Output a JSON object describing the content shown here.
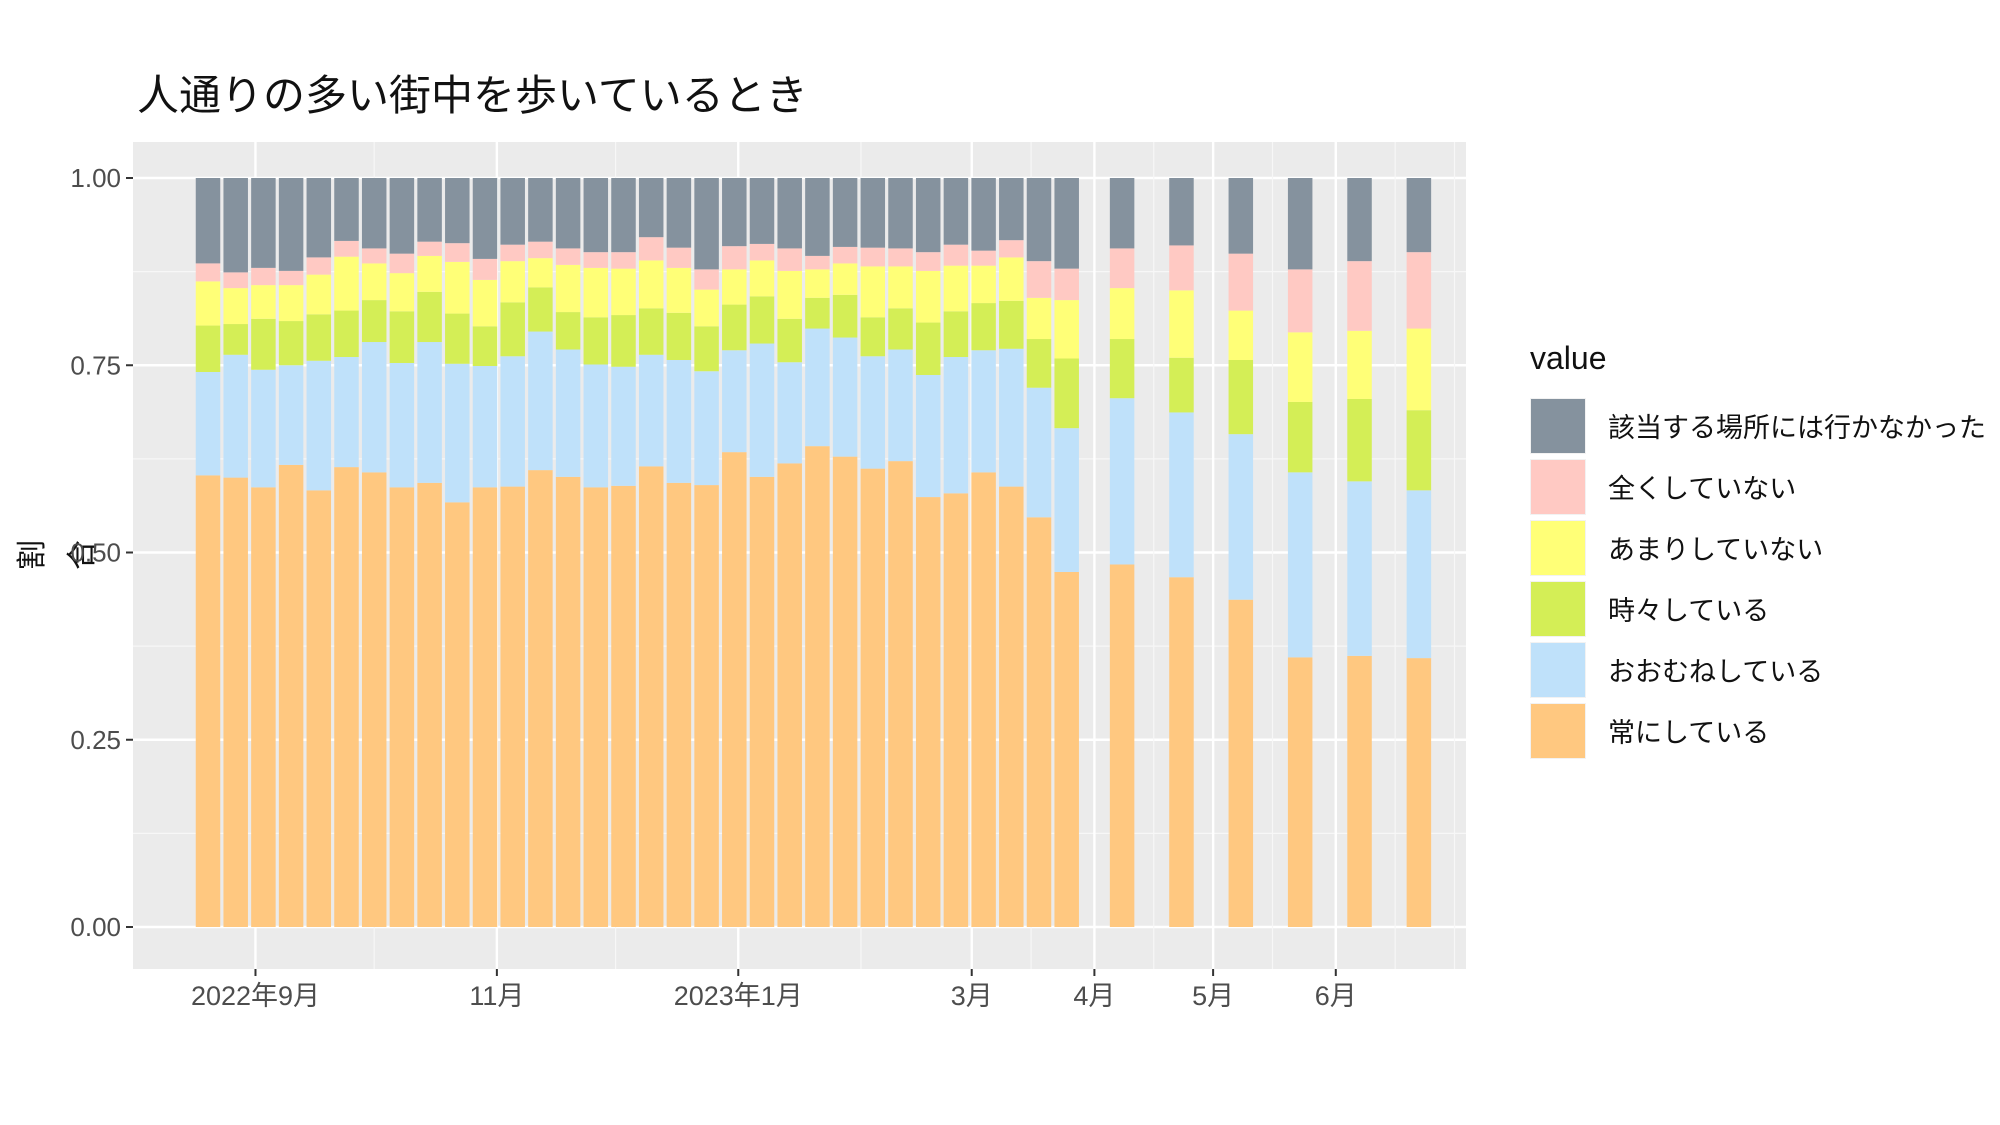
{
  "chart_data": {
    "type": "bar",
    "stacked": true,
    "title": "人通りの多い街中を歩いているとき",
    "xlabel": "",
    "ylabel": "割合",
    "ylim": [
      0,
      1
    ],
    "yticks": [
      "0.00",
      "0.25",
      "0.50",
      "0.75",
      "1.00"
    ],
    "xtick_labels": [
      "2022年9月",
      "11月",
      "2023年1月",
      "3月",
      "4月",
      "5月",
      "6月"
    ],
    "grid": true,
    "legend_title": "value",
    "legend_position": "right",
    "legend_order": [
      "該当する場所には行かなかった",
      "全くしていない",
      "あまりしていない",
      "時々している",
      "おおむねしている",
      "常にしている"
    ],
    "series_colors": {
      "常にしている": "#FFC880",
      "おおむねしている": "#BFE1FA",
      "時々している": "#D4EE56",
      "あまりしていない": "#FFFF77",
      "全くしていない": "#FFC9C3",
      "該当する場所には行かなかった": "#85929E"
    },
    "bars": [
      {
        "date": "2022-08-20",
        "cumulative": [
          0.603,
          0.741,
          0.803,
          0.862,
          0.886,
          1.0
        ]
      },
      {
        "date": "2022-08-27",
        "cumulative": [
          0.6,
          0.764,
          0.805,
          0.853,
          0.874,
          1.0
        ]
      },
      {
        "date": "2022-09-03",
        "cumulative": [
          0.587,
          0.744,
          0.812,
          0.857,
          0.88,
          1.0
        ]
      },
      {
        "date": "2022-09-10",
        "cumulative": [
          0.617,
          0.75,
          0.809,
          0.857,
          0.876,
          1.0
        ]
      },
      {
        "date": "2022-09-17",
        "cumulative": [
          0.583,
          0.756,
          0.818,
          0.871,
          0.894,
          1.0
        ]
      },
      {
        "date": "2022-09-24",
        "cumulative": [
          0.614,
          0.761,
          0.823,
          0.895,
          0.916,
          1.0
        ]
      },
      {
        "date": "2022-10-01",
        "cumulative": [
          0.607,
          0.781,
          0.837,
          0.886,
          0.906,
          1.0
        ]
      },
      {
        "date": "2022-10-08",
        "cumulative": [
          0.587,
          0.753,
          0.822,
          0.873,
          0.899,
          1.0
        ]
      },
      {
        "date": "2022-10-15",
        "cumulative": [
          0.593,
          0.781,
          0.848,
          0.896,
          0.915,
          1.0
        ]
      },
      {
        "date": "2022-10-22",
        "cumulative": [
          0.567,
          0.752,
          0.819,
          0.888,
          0.913,
          1.0
        ]
      },
      {
        "date": "2022-10-29",
        "cumulative": [
          0.587,
          0.749,
          0.802,
          0.864,
          0.892,
          1.0
        ]
      },
      {
        "date": "2022-11-05",
        "cumulative": [
          0.588,
          0.762,
          0.834,
          0.889,
          0.911,
          1.0
        ]
      },
      {
        "date": "2022-11-12",
        "cumulative": [
          0.61,
          0.795,
          0.854,
          0.893,
          0.915,
          1.0
        ]
      },
      {
        "date": "2022-11-19",
        "cumulative": [
          0.601,
          0.771,
          0.821,
          0.884,
          0.906,
          1.0
        ]
      },
      {
        "date": "2022-11-26",
        "cumulative": [
          0.587,
          0.751,
          0.814,
          0.88,
          0.901,
          1.0
        ]
      },
      {
        "date": "2022-12-03",
        "cumulative": [
          0.589,
          0.748,
          0.817,
          0.879,
          0.901,
          1.0
        ]
      },
      {
        "date": "2022-12-10",
        "cumulative": [
          0.615,
          0.764,
          0.826,
          0.89,
          0.921,
          1.0
        ]
      },
      {
        "date": "2022-12-17",
        "cumulative": [
          0.593,
          0.757,
          0.82,
          0.88,
          0.907,
          1.0
        ]
      },
      {
        "date": "2022-12-24",
        "cumulative": [
          0.59,
          0.742,
          0.802,
          0.851,
          0.878,
          1.0
        ]
      },
      {
        "date": "2022-12-31",
        "cumulative": [
          0.634,
          0.77,
          0.831,
          0.878,
          0.909,
          1.0
        ]
      },
      {
        "date": "2023-01-07",
        "cumulative": [
          0.601,
          0.779,
          0.842,
          0.89,
          0.912,
          1.0
        ]
      },
      {
        "date": "2023-01-14",
        "cumulative": [
          0.619,
          0.754,
          0.812,
          0.876,
          0.906,
          1.0
        ]
      },
      {
        "date": "2023-01-21",
        "cumulative": [
          0.642,
          0.799,
          0.84,
          0.878,
          0.896,
          1.0
        ]
      },
      {
        "date": "2023-01-28",
        "cumulative": [
          0.628,
          0.787,
          0.844,
          0.886,
          0.908,
          1.0
        ]
      },
      {
        "date": "2023-02-04",
        "cumulative": [
          0.612,
          0.762,
          0.814,
          0.882,
          0.907,
          1.0
        ]
      },
      {
        "date": "2023-02-11",
        "cumulative": [
          0.622,
          0.771,
          0.826,
          0.882,
          0.906,
          1.0
        ]
      },
      {
        "date": "2023-02-18",
        "cumulative": [
          0.574,
          0.737,
          0.807,
          0.876,
          0.901,
          1.0
        ]
      },
      {
        "date": "2023-02-25",
        "cumulative": [
          0.579,
          0.761,
          0.822,
          0.883,
          0.911,
          1.0
        ]
      },
      {
        "date": "2023-03-04",
        "cumulative": [
          0.607,
          0.77,
          0.833,
          0.883,
          0.903,
          1.0
        ]
      },
      {
        "date": "2023-03-11",
        "cumulative": [
          0.588,
          0.772,
          0.836,
          0.894,
          0.917,
          1.0
        ]
      },
      {
        "date": "2023-03-18",
        "cumulative": [
          0.547,
          0.72,
          0.785,
          0.84,
          0.889,
          1.0
        ]
      },
      {
        "date": "2023-03-25",
        "cumulative": [
          0.474,
          0.666,
          0.759,
          0.837,
          0.879,
          1.0
        ]
      },
      {
        "date": "2023-04-08",
        "cumulative": [
          0.484,
          0.706,
          0.785,
          0.853,
          0.906,
          1.0
        ]
      },
      {
        "date": "2023-04-23",
        "cumulative": [
          0.467,
          0.687,
          0.76,
          0.85,
          0.91,
          1.0
        ]
      },
      {
        "date": "2023-05-08",
        "cumulative": [
          0.437,
          0.658,
          0.757,
          0.823,
          0.899,
          1.0
        ]
      },
      {
        "date": "2023-05-23",
        "cumulative": [
          0.36,
          0.607,
          0.701,
          0.794,
          0.878,
          1.0
        ]
      },
      {
        "date": "2023-06-07",
        "cumulative": [
          0.362,
          0.595,
          0.705,
          0.796,
          0.889,
          1.0
        ]
      },
      {
        "date": "2023-06-22",
        "cumulative": [
          0.359,
          0.583,
          0.69,
          0.799,
          0.901,
          1.0
        ]
      }
    ]
  }
}
